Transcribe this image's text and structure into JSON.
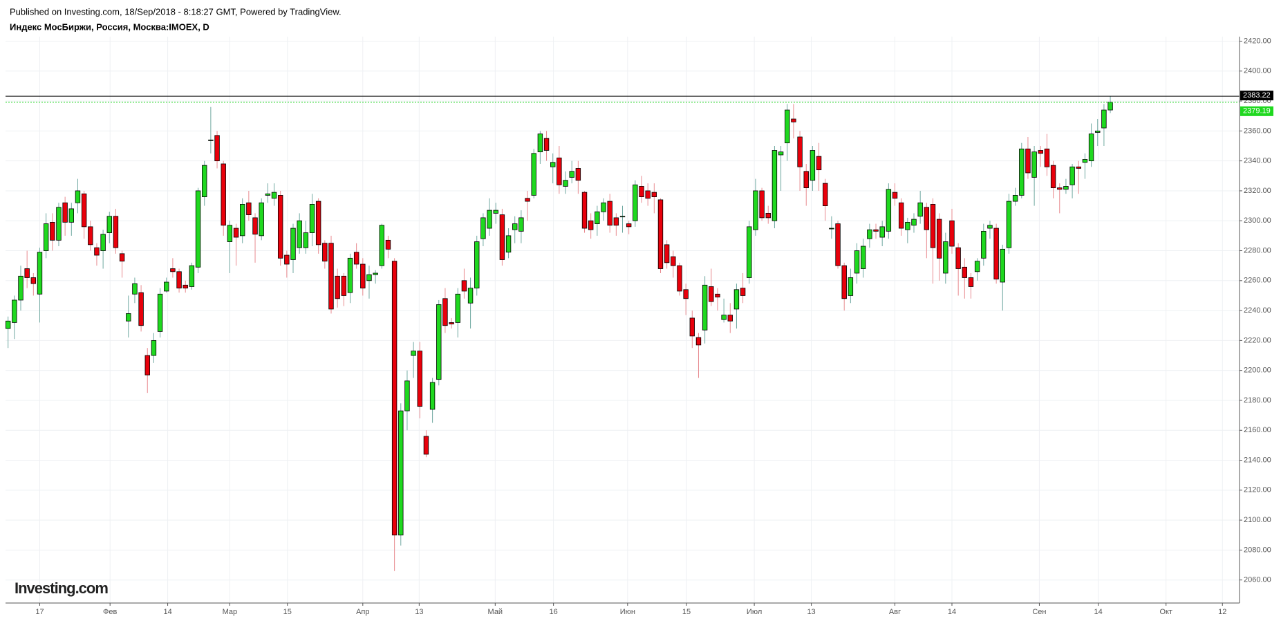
{
  "chart_data": {
    "type": "candlestick",
    "title": "Published on Investing.com, 18/Sep/2018 - 8:18:27 GMT, Powered by TradingView.",
    "subtitle": "Индекс МосБиржи, Россия, Москва:IMOEX, D",
    "logo": "Investing.com",
    "up_color": "#1fd81f",
    "down_color": "#e8000b",
    "grid": true,
    "ylim": [
      2046,
      2423
    ],
    "yticks": [
      {
        "value": 2060,
        "label": "2060.00"
      },
      {
        "value": 2080,
        "label": "2080.00"
      },
      {
        "value": 2100,
        "label": "2100.00"
      },
      {
        "value": 2120,
        "label": "2120.00"
      },
      {
        "value": 2140,
        "label": "2140.00"
      },
      {
        "value": 2160,
        "label": "2160.00"
      },
      {
        "value": 2180,
        "label": "2180.00"
      },
      {
        "value": 2200,
        "label": "2200.00"
      },
      {
        "value": 2220,
        "label": "2220.00"
      },
      {
        "value": 2240,
        "label": "2240.00"
      },
      {
        "value": 2260,
        "label": "2260.00"
      },
      {
        "value": 2280,
        "label": "2280.00"
      },
      {
        "value": 2300,
        "label": "2300.00"
      },
      {
        "value": 2320,
        "label": "2320.00"
      },
      {
        "value": 2340,
        "label": "2340.00"
      },
      {
        "value": 2360,
        "label": "2360.00"
      },
      {
        "value": 2380,
        "label": "2380.00"
      },
      {
        "value": 2400,
        "label": "2400.00"
      },
      {
        "value": 2420,
        "label": "2420.00"
      }
    ],
    "xlim": [
      -0.4,
      194.4
    ],
    "xticks": [
      {
        "value": 5,
        "label": "17"
      },
      {
        "value": 16.1,
        "label": "Фев"
      },
      {
        "value": 25.2,
        "label": "14"
      },
      {
        "value": 35,
        "label": "Мар"
      },
      {
        "value": 44.1,
        "label": "15"
      },
      {
        "value": 56,
        "label": "Апр"
      },
      {
        "value": 64.9,
        "label": "13"
      },
      {
        "value": 76.9,
        "label": "Май"
      },
      {
        "value": 86.1,
        "label": "16"
      },
      {
        "value": 97.8,
        "label": "Июн"
      },
      {
        "value": 107.1,
        "label": "15"
      },
      {
        "value": 117.8,
        "label": "Июл"
      },
      {
        "value": 126.8,
        "label": "13"
      },
      {
        "value": 140,
        "label": "Авг"
      },
      {
        "value": 149,
        "label": "14"
      },
      {
        "value": 162.8,
        "label": "Сен"
      },
      {
        "value": 172.1,
        "label": "14"
      },
      {
        "value": 182.8,
        "label": "Окт"
      },
      {
        "value": 191.7,
        "label": "12"
      }
    ],
    "open": [
      2228,
      2232,
      2247,
      2268,
      2262,
      2251,
      2280,
      2299,
      2287,
      2312,
      2299,
      2312,
      2318,
      2296,
      2282,
      2280,
      2292,
      2303,
      2278,
      2233,
      2251,
      2252,
      2210,
      2210,
      2226,
      2253,
      2268,
      2266,
      2257,
      2256,
      2269,
      2316,
      2354,
      2357,
      2338,
      2286,
      2295,
      2290,
      2312,
      2302,
      2290,
      2317,
      2315,
      2317,
      2277,
      2274,
      2282,
      2282,
      2292,
      2313,
      2285,
      2285,
      2263,
      2263,
      2252,
      2279,
      2271,
      2260,
      2264,
      2270,
      2287,
      2273,
      2090,
      2173,
      2210,
      2213,
      2156,
      2174,
      2194,
      2248,
      2232,
      2232,
      2260,
      2245,
      2255,
      2288,
      2295,
      2305,
      2304,
      2279,
      2294,
      2293,
      2315,
      2317,
      2346,
      2355,
      2336,
      2342,
      2323,
      2329,
      2335,
      2319,
      2300,
      2298,
      2306,
      2313,
      2302,
      2303,
      2298,
      2300,
      2323,
      2320,
      2319,
      2314,
      2284,
      2276,
      2270,
      2254,
      2235,
      2222,
      2227,
      2256,
      2251,
      2234,
      2237,
      2241,
      2255,
      2262,
      2294,
      2320,
      2305,
      2300,
      2344,
      2352,
      2368,
      2356,
      2333,
      2327,
      2343,
      2325,
      2295,
      2298,
      2270,
      2250,
      2265,
      2268,
      2288,
      2294,
      2289,
      2293,
      2319,
      2312,
      2294,
      2297,
      2303,
      2309,
      2311,
      2301,
      2265,
      2300,
      2282,
      2269,
      2262,
      2266,
      2275,
      2295,
      2295,
      2259,
      2282,
      2313,
      2317,
      2348,
      2329,
      2347,
      2348,
      2337,
      2322,
      2321,
      2324,
      2336,
      2339,
      2340,
      2359,
      2362,
      2374
    ],
    "high": [
      2236,
      2250,
      2270,
      2280,
      2265,
      2282,
      2305,
      2305,
      2312,
      2316,
      2312,
      2328,
      2320,
      2300,
      2285,
      2294,
      2306,
      2308,
      2280,
      2250,
      2262,
      2257,
      2215,
      2225,
      2255,
      2262,
      2275,
      2268,
      2260,
      2272,
      2322,
      2340,
      2376,
      2360,
      2340,
      2300,
      2298,
      2315,
      2320,
      2305,
      2315,
      2325,
      2325,
      2320,
      2280,
      2298,
      2305,
      2300,
      2318,
      2315,
      2287,
      2290,
      2268,
      2265,
      2278,
      2285,
      2275,
      2270,
      2267,
      2298,
      2290,
      2275,
      2178,
      2200,
      2219,
      2219,
      2160,
      2195,
      2247,
      2255,
      2235,
      2255,
      2268,
      2262,
      2290,
      2305,
      2315,
      2312,
      2308,
      2295,
      2303,
      2307,
      2320,
      2348,
      2360,
      2360,
      2345,
      2350,
      2333,
      2340,
      2340,
      2320,
      2305,
      2310,
      2315,
      2318,
      2305,
      2310,
      2300,
      2327,
      2330,
      2325,
      2325,
      2315,
      2287,
      2280,
      2272,
      2258,
      2240,
      2225,
      2263,
      2268,
      2255,
      2248,
      2245,
      2258,
      2265,
      2300,
      2328,
      2322,
      2310,
      2350,
      2350,
      2378,
      2378,
      2360,
      2338,
      2350,
      2352,
      2328,
      2303,
      2300,
      2272,
      2268,
      2285,
      2288,
      2298,
      2298,
      2300,
      2325,
      2325,
      2315,
      2302,
      2305,
      2320,
      2312,
      2315,
      2305,
      2292,
      2308,
      2285,
      2275,
      2265,
      2275,
      2298,
      2300,
      2298,
      2284,
      2318,
      2322,
      2352,
      2356,
      2350,
      2350,
      2358,
      2340,
      2325,
      2328,
      2338,
      2340,
      2345,
      2365,
      2368,
      2378,
      2383.22
    ],
    "low": [
      2215,
      2221,
      2240,
      2255,
      2250,
      2232,
      2275,
      2280,
      2283,
      2290,
      2290,
      2305,
      2288,
      2280,
      2270,
      2268,
      2285,
      2278,
      2262,
      2222,
      2245,
      2226,
      2185,
      2205,
      2222,
      2252,
      2262,
      2252,
      2252,
      2254,
      2265,
      2310,
      2345,
      2335,
      2290,
      2265,
      2270,
      2285,
      2300,
      2272,
      2287,
      2312,
      2310,
      2270,
      2262,
      2265,
      2278,
      2278,
      2283,
      2278,
      2268,
      2238,
      2242,
      2243,
      2245,
      2268,
      2250,
      2248,
      2258,
      2268,
      2275,
      2066,
      2083,
      2160,
      2195,
      2168,
      2142,
      2165,
      2190,
      2225,
      2228,
      2222,
      2248,
      2228,
      2250,
      2283,
      2290,
      2298,
      2270,
      2275,
      2285,
      2285,
      2300,
      2315,
      2338,
      2340,
      2325,
      2318,
      2318,
      2325,
      2318,
      2292,
      2288,
      2290,
      2300,
      2292,
      2290,
      2292,
      2291,
      2296,
      2312,
      2310,
      2305,
      2265,
      2268,
      2262,
      2250,
      2237,
      2215,
      2195,
      2218,
      2243,
      2240,
      2232,
      2225,
      2228,
      2245,
      2258,
      2290,
      2300,
      2298,
      2295,
      2320,
      2340,
      2355,
      2320,
      2310,
      2320,
      2320,
      2300,
      2288,
      2268,
      2240,
      2245,
      2258,
      2262,
      2282,
      2288,
      2283,
      2288,
      2310,
      2290,
      2285,
      2292,
      2298,
      2275,
      2258,
      2260,
      2258,
      2278,
      2250,
      2248,
      2248,
      2260,
      2270,
      2288,
      2258,
      2240,
      2278,
      2310,
      2315,
      2328,
      2310,
      2336,
      2330,
      2315,
      2305,
      2318,
      2315,
      2318,
      2328,
      2336,
      2350,
      2350,
      2372
    ],
    "close": [
      2233,
      2247,
      2263,
      2262,
      2258,
      2279,
      2298,
      2287,
      2309,
      2299,
      2308,
      2320,
      2296,
      2284,
      2277,
      2291,
      2303,
      2282,
      2273,
      2238,
      2258,
      2230,
      2197,
      2220,
      2251,
      2259,
      2266,
      2255,
      2255,
      2270,
      2320,
      2337,
      2354,
      2340,
      2297,
      2297,
      2289,
      2311,
      2304,
      2291,
      2312,
      2318,
      2319,
      2275,
      2271,
      2295,
      2300,
      2292,
      2311,
      2284,
      2273,
      2241,
      2248,
      2250,
      2275,
      2271,
      2255,
      2264,
      2265,
      2297,
      2281,
      2090,
      2173,
      2193,
      2213,
      2176,
      2144,
      2192,
      2244,
      2230,
      2231,
      2251,
      2253,
      2255,
      2286,
      2302,
      2307,
      2307,
      2274,
      2290,
      2298,
      2302,
      2313,
      2345,
      2358,
      2347,
      2339,
      2324,
      2327,
      2333,
      2327,
      2295,
      2294,
      2306,
      2312,
      2297,
      2297,
      2303,
      2296,
      2324,
      2316,
      2315,
      2316,
      2268,
      2272,
      2270,
      2253,
      2248,
      2223,
      2217,
      2257,
      2246,
      2249,
      2237,
      2233,
      2254,
      2250,
      2296,
      2320,
      2302,
      2302,
      2347,
      2346,
      2374,
      2366,
      2336,
      2322,
      2347,
      2334,
      2310,
      2295,
      2270,
      2248,
      2262,
      2280,
      2283,
      2294,
      2293,
      2296,
      2321,
      2315,
      2295,
      2299,
      2301,
      2312,
      2294,
      2282,
      2275,
      2286,
      2283,
      2268,
      2262,
      2256,
      2273,
      2293,
      2297,
      2261,
      2281,
      2313,
      2317,
      2348,
      2332,
      2346,
      2345,
      2336,
      2322,
      2321,
      2323,
      2336,
      2335,
      2341,
      2358,
      2360,
      2374,
      2379.19
    ]
  }
}
